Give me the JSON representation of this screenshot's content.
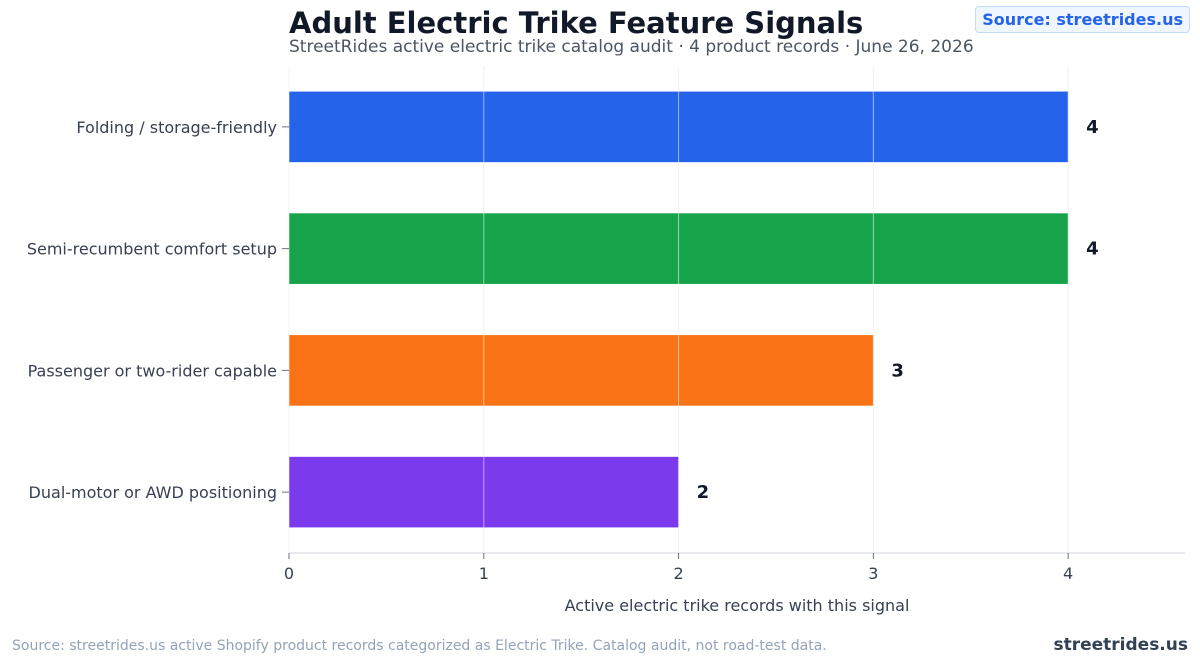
{
  "header": {
    "title": "Adult Electric Trike Feature Signals",
    "subtitle": "StreetRides active electric trike catalog audit · 4 product records · June 26, 2026",
    "source_badge": "Source: streetrides.us"
  },
  "footer": {
    "note": "Source: streetrides.us active Shopify product records categorized as Electric Trike. Catalog audit, not road-test data.",
    "brand": "streetrides.us"
  },
  "chart_data": {
    "type": "bar",
    "orientation": "horizontal",
    "title": "Adult Electric Trike Feature Signals",
    "subtitle": "StreetRides active electric trike catalog audit · 4 product records · June 26, 2026",
    "xlabel": "Active electric trike records with this signal",
    "ylabel": "",
    "categories": [
      "Folding / storage-friendly",
      "Semi-recumbent comfort setup",
      "Passenger or two-rider capable",
      "Dual-motor or AWD positioning"
    ],
    "values": [
      4,
      4,
      3,
      2
    ],
    "data_labels": [
      "4",
      "4",
      "3",
      "2"
    ],
    "colors": [
      "#2563eb",
      "#16a34a",
      "#f97316",
      "#7c3aed"
    ],
    "xlim": [
      0,
      4.6
    ],
    "x_ticks": [
      "0",
      "1",
      "2",
      "3",
      "4"
    ],
    "grid": "vertical"
  }
}
